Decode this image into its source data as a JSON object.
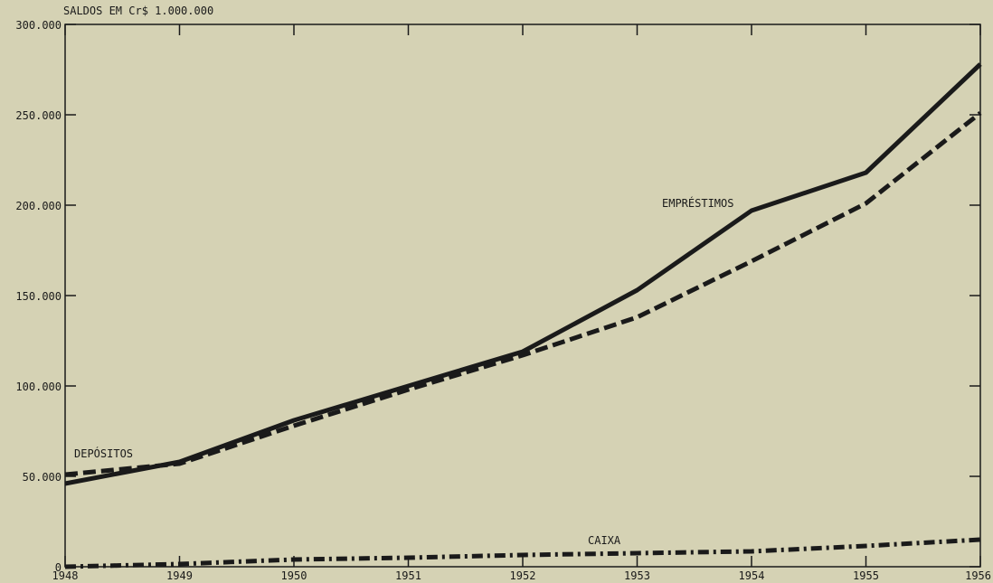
{
  "chart_data": {
    "type": "line",
    "title": "",
    "unit_label": "SALDOS EM Cr$ 1.000.000",
    "xlabel": "",
    "ylabel": "",
    "x": [
      1948,
      1949,
      1950,
      1951,
      1952,
      1953,
      1954,
      1955,
      1956
    ],
    "x_tick_labels": [
      "1948",
      "1949",
      "1950",
      "1951",
      "1952",
      "1953",
      "1954",
      "1955",
      "1956"
    ],
    "y_tick_labels": [
      "0",
      "50.000",
      "100.000",
      "150.000",
      "200.000",
      "250.000",
      "300.000"
    ],
    "ylim": [
      0,
      300000
    ],
    "xlim": [
      1948,
      1956
    ],
    "grid": false,
    "series": [
      {
        "name": "EMPRÉSTIMOS",
        "style": "solid",
        "values": [
          46000,
          58000,
          81000,
          100000,
          119000,
          153000,
          197000,
          218000,
          278000
        ]
      },
      {
        "name": "DEPÓSITOS",
        "style": "dashed",
        "values": [
          51000,
          57000,
          78000,
          98000,
          117000,
          138000,
          169000,
          201000,
          251000
        ]
      },
      {
        "name": "CAIXA",
        "style": "dash-dot",
        "values": [
          0,
          1500,
          4000,
          5000,
          6500,
          7500,
          8500,
          11500,
          15000
        ]
      }
    ],
    "colors": {
      "background": "#d5d2b4",
      "ink": "#1a1a1a"
    }
  }
}
